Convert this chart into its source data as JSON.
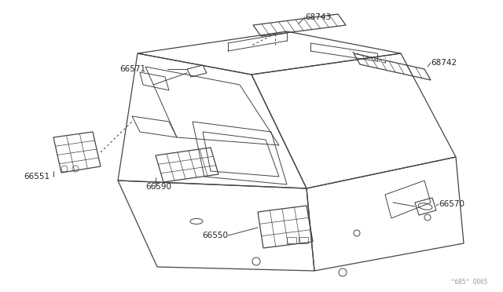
{
  "background_color": "#ffffff",
  "line_color": "#444444",
  "label_color": "#222222",
  "watermark": "^685^ 0065",
  "figsize": [
    6.4,
    3.72
  ],
  "dpi": 100,
  "part_numbers": [
    "66571",
    "66551",
    "66590",
    "66550",
    "66570",
    "68743",
    "68742"
  ]
}
